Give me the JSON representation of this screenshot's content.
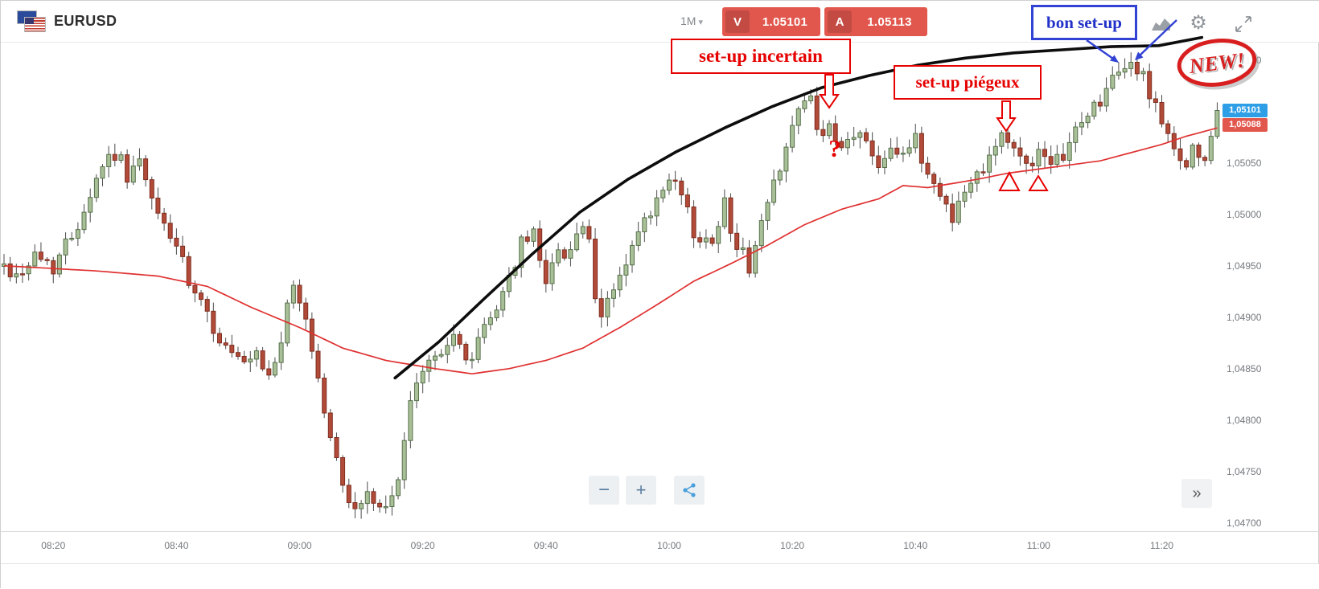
{
  "header": {
    "symbol": "EURUSD",
    "timeframe": "1M",
    "bid_label": "V",
    "bid_value": "1.05101",
    "ask_label": "A",
    "ask_value": "1.05113"
  },
  "icons": {
    "caret": "▾",
    "gear": "⚙",
    "collapse": "»"
  },
  "controls": {
    "zoom_out": "−",
    "zoom_in": "+"
  },
  "price_tags": {
    "current": "1,05101",
    "secondary": "1,05088"
  },
  "annotations": {
    "uncertain_label": "set-up incertain",
    "trap_label": "set-up piégeux",
    "good_label": "bon set-up",
    "question_mark": "?",
    "stamp": "NEW!"
  },
  "chart_data": {
    "type": "candlestick",
    "symbol": "EURUSD",
    "interval": "1M",
    "x_unit": "minutes_since_08:12",
    "xlim": [
      0,
      198
    ],
    "ylim": [
      1.04692,
      1.05167
    ],
    "last_price": 1.05101,
    "time_ticks": [
      {
        "t": 8,
        "label": "08:20"
      },
      {
        "t": 28,
        "label": "08:40"
      },
      {
        "t": 48,
        "label": "09:00"
      },
      {
        "t": 68,
        "label": "09:20"
      },
      {
        "t": 88,
        "label": "09:40"
      },
      {
        "t": 108,
        "label": "10:00"
      },
      {
        "t": 128,
        "label": "10:20"
      },
      {
        "t": 148,
        "label": "10:40"
      },
      {
        "t": 168,
        "label": "11:00"
      },
      {
        "t": 188,
        "label": "11:20"
      }
    ],
    "price_ticks": [
      {
        "v": 1.0515,
        "label": "1,05150"
      },
      {
        "v": 1.051,
        "label": "1,05100"
      },
      {
        "v": 1.0505,
        "label": "1,05050"
      },
      {
        "v": 1.05,
        "label": "1,05000"
      },
      {
        "v": 1.0495,
        "label": "1,04950"
      },
      {
        "v": 1.049,
        "label": "1,04900"
      },
      {
        "v": 1.0485,
        "label": "1,04850"
      },
      {
        "v": 1.048,
        "label": "1,04800"
      },
      {
        "v": 1.0475,
        "label": "1,04750"
      },
      {
        "v": 1.047,
        "label": "1,04700"
      }
    ],
    "close_path": [
      [
        0,
        1.0495
      ],
      [
        2,
        1.0494
      ],
      [
        5,
        1.0496
      ],
      [
        8,
        1.0495
      ],
      [
        11,
        1.0498
      ],
      [
        14,
        1.0502
      ],
      [
        16,
        1.0505
      ],
      [
        18,
        1.0506
      ],
      [
        20,
        1.0504
      ],
      [
        22,
        1.0505
      ],
      [
        24,
        1.0501
      ],
      [
        26,
        1.0499
      ],
      [
        28,
        1.0497
      ],
      [
        30,
        1.0493
      ],
      [
        33,
        1.049
      ],
      [
        36,
        1.0487
      ],
      [
        39,
        1.0485
      ],
      [
        41,
        1.0486
      ],
      [
        43,
        1.0484
      ],
      [
        45,
        1.0488
      ],
      [
        47,
        1.0493
      ],
      [
        49,
        1.049
      ],
      [
        51,
        1.0484
      ],
      [
        53,
        1.0478
      ],
      [
        55,
        1.0474
      ],
      [
        57,
        1.0471
      ],
      [
        59,
        1.0473
      ],
      [
        61,
        1.0471
      ],
      [
        63,
        1.0472
      ],
      [
        64,
        1.0475
      ],
      [
        66,
        1.0481
      ],
      [
        68,
        1.0485
      ],
      [
        70,
        1.0486
      ],
      [
        72,
        1.0488
      ],
      [
        74,
        1.0487
      ],
      [
        76,
        1.0486
      ],
      [
        78,
        1.0489
      ],
      [
        80,
        1.0491
      ],
      [
        82,
        1.0494
      ],
      [
        84,
        1.0497
      ],
      [
        86,
        1.0498
      ],
      [
        88,
        1.0494
      ],
      [
        90,
        1.0496
      ],
      [
        92,
        1.0497
      ],
      [
        94,
        1.0499
      ],
      [
        95,
        1.0497
      ],
      [
        96,
        1.0491
      ],
      [
        97,
        1.049
      ],
      [
        99,
        1.0493
      ],
      [
        101,
        1.0495
      ],
      [
        103,
        1.0498
      ],
      [
        105,
        1.05
      ],
      [
        107,
        1.0502
      ],
      [
        109,
        1.0503
      ],
      [
        111,
        1.05
      ],
      [
        113,
        1.0497
      ],
      [
        115,
        1.0498
      ],
      [
        117,
        1.0501
      ],
      [
        119,
        1.0497
      ],
      [
        121,
        1.0495
      ],
      [
        123,
        1.0499
      ],
      [
        125,
        1.0503
      ],
      [
        127,
        1.0507
      ],
      [
        129,
        1.051
      ],
      [
        131,
        1.0511
      ],
      [
        133,
        1.0507
      ],
      [
        134,
        1.0508
      ],
      [
        136,
        1.0506
      ],
      [
        138,
        1.0508
      ],
      [
        140,
        1.0507
      ],
      [
        142,
        1.0505
      ],
      [
        144,
        1.0507
      ],
      [
        146,
        1.0506
      ],
      [
        148,
        1.0507
      ],
      [
        150,
        1.0504
      ],
      [
        152,
        1.0502
      ],
      [
        154,
        1.05
      ],
      [
        156,
        1.0502
      ],
      [
        158,
        1.0504
      ],
      [
        160,
        1.0506
      ],
      [
        162,
        1.0508
      ],
      [
        164,
        1.0506
      ],
      [
        166,
        1.0505
      ],
      [
        168,
        1.0506
      ],
      [
        170,
        1.0504
      ],
      [
        172,
        1.0506
      ],
      [
        174,
        1.0508
      ],
      [
        176,
        1.051
      ],
      [
        178,
        1.0511
      ],
      [
        180,
        1.0513
      ],
      [
        182,
        1.0514
      ],
      [
        183,
        1.0515
      ],
      [
        185,
        1.0513
      ],
      [
        187,
        1.0511
      ],
      [
        189,
        1.0507
      ],
      [
        191,
        1.0505
      ],
      [
        193,
        1.0506
      ],
      [
        195,
        1.0505
      ],
      [
        196,
        1.0507
      ],
      [
        197,
        1.05101
      ]
    ],
    "ma_path": [
      [
        0,
        1.0495
      ],
      [
        15,
        1.04945
      ],
      [
        25,
        1.0494
      ],
      [
        33,
        1.0493
      ],
      [
        40,
        1.0491
      ],
      [
        48,
        1.0489
      ],
      [
        55,
        1.0487
      ],
      [
        62,
        1.04858
      ],
      [
        70,
        1.0485
      ],
      [
        76,
        1.04845
      ],
      [
        82,
        1.0485
      ],
      [
        88,
        1.04858
      ],
      [
        94,
        1.0487
      ],
      [
        100,
        1.0489
      ],
      [
        106,
        1.04912
      ],
      [
        112,
        1.04935
      ],
      [
        118,
        1.04952
      ],
      [
        124,
        1.0497
      ],
      [
        130,
        1.0499
      ],
      [
        136,
        1.05005
      ],
      [
        142,
        1.05015
      ],
      [
        146,
        1.05028
      ],
      [
        150,
        1.05026
      ],
      [
        154,
        1.0503
      ],
      [
        158,
        1.05034
      ],
      [
        163,
        1.0504
      ],
      [
        168,
        1.05044
      ],
      [
        173,
        1.05048
      ],
      [
        178,
        1.05052
      ],
      [
        183,
        1.0506
      ],
      [
        188,
        1.05068
      ],
      [
        192,
        1.05076
      ],
      [
        197,
        1.05084
      ]
    ],
    "trendline": [
      [
        63.5,
        1.04841
      ],
      [
        70.6,
        1.04876
      ],
      [
        77.8,
        1.04917
      ],
      [
        85.7,
        1.04961
      ],
      [
        93.5,
        1.05002
      ],
      [
        101.3,
        1.05034
      ],
      [
        109.2,
        1.05061
      ],
      [
        117,
        1.05084
      ],
      [
        124.8,
        1.05105
      ],
      [
        132.7,
        1.05123
      ],
      [
        140.5,
        1.05135
      ],
      [
        148.3,
        1.05145
      ],
      [
        156.2,
        1.05152
      ],
      [
        164,
        1.05157
      ],
      [
        171.8,
        1.0516
      ],
      [
        179.7,
        1.05163
      ],
      [
        187.5,
        1.05164
      ],
      [
        194.5,
        1.05172
      ]
    ],
    "colors": {
      "up_fill": "#a9bf97",
      "up_stroke": "#55704a",
      "down_fill": "#b14a39",
      "down_stroke": "#7e2e1f",
      "wick": "#4a4a4a",
      "ma": "#e03030",
      "trendline": "#0d0d0d",
      "annotation_red": "#e60000",
      "annotation_blue": "#3142d4"
    }
  }
}
